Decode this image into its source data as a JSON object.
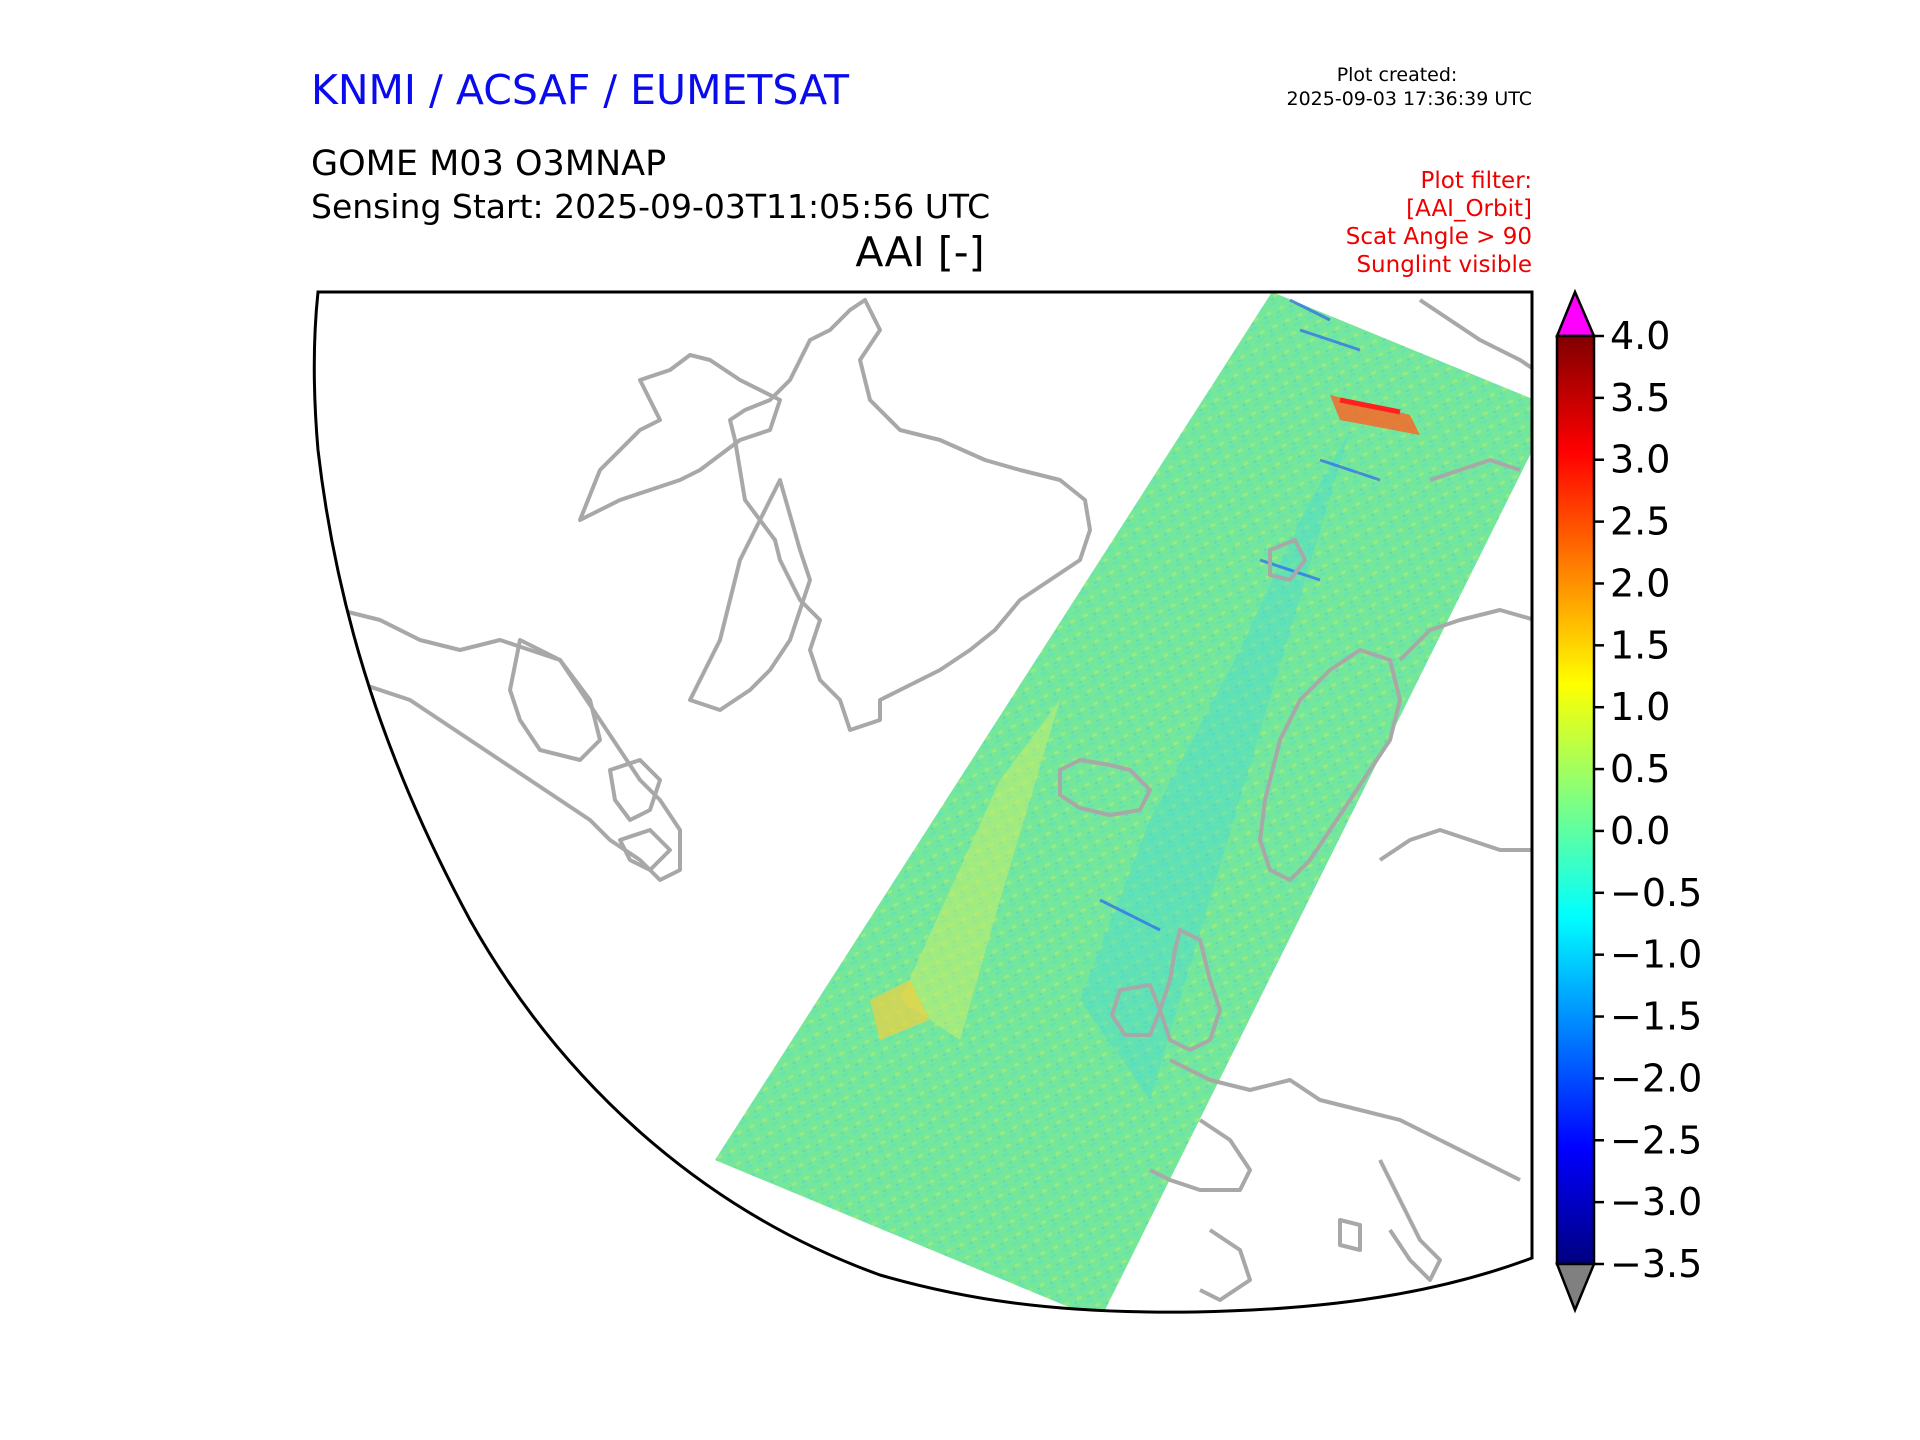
{
  "header": {
    "organization": "KNMI / ACSAF / EUMETSAT",
    "plot_created_label": "Plot created:",
    "plot_created_time": "2025-09-03 17:36:39 UTC",
    "product": "GOME M03 O3MNAP",
    "sensing_start": "Sensing Start: 2025-09-03T11:05:56 UTC",
    "variable": "AAI [-]"
  },
  "filters": [
    "Plot filter:",
    "[AAI_Orbit]",
    "Scat Angle > 90",
    "Sunglint visible"
  ],
  "colorbar": {
    "ticks": [
      "4.0",
      "3.5",
      "3.0",
      "2.5",
      "2.0",
      "1.5",
      "1.0",
      "0.5",
      "0.0",
      "−0.5",
      "−1.0",
      "−1.5",
      "−2.0",
      "−2.5",
      "−3.0",
      "−3.5"
    ],
    "min": -3.5,
    "max": 4.0,
    "over_color": "#ff00ff",
    "under_color": "#808080",
    "colormap": [
      "#000080",
      "#0000ff",
      "#0080ff",
      "#00ffff",
      "#80ff80",
      "#ffff00",
      "#ff8000",
      "#ff0000",
      "#800000"
    ]
  },
  "map": {
    "coastline_color": "#a8a8a8",
    "swath_base_color": "#7ee890"
  }
}
